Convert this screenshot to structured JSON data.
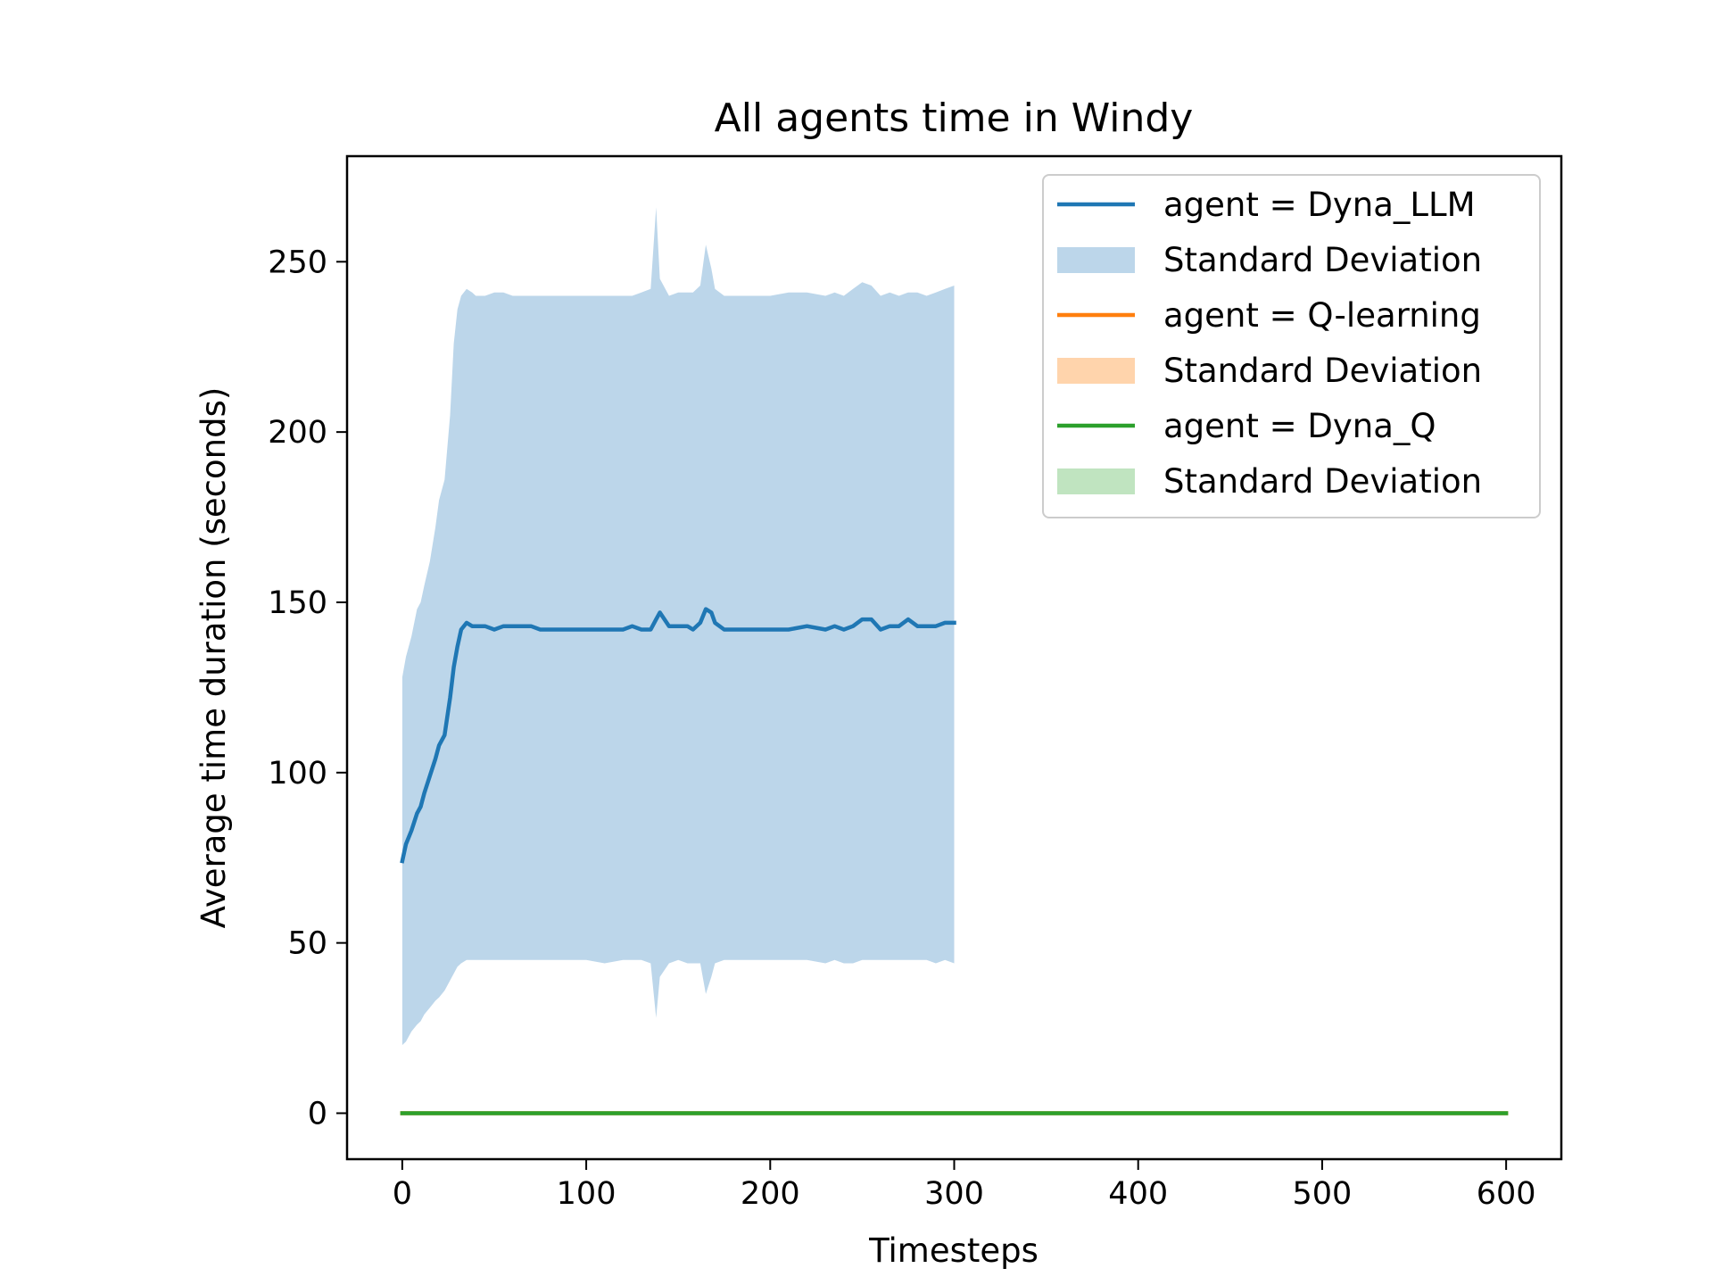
{
  "chart_data": {
    "type": "line",
    "title": "All agents time in Windy",
    "xlabel": "Timesteps",
    "ylabel": "Average time duration (seconds)",
    "xlim": [
      -30,
      630
    ],
    "ylim": [
      -13.5,
      281
    ],
    "xticks": [
      0,
      100,
      200,
      300,
      400,
      500,
      600
    ],
    "yticks": [
      0,
      50,
      100,
      150,
      200,
      250
    ],
    "grid": false,
    "legend_position": "top-right",
    "series": [
      {
        "name": "agent = Dyna_LLM",
        "color": "#1f77b4",
        "band_label": "Standard Deviation",
        "band_color": "#bcd6ea",
        "x": [
          0,
          2,
          5,
          8,
          10,
          12,
          15,
          18,
          20,
          23,
          26,
          28,
          30,
          32,
          35,
          38,
          40,
          45,
          50,
          55,
          60,
          65,
          70,
          75,
          80,
          90,
          100,
          110,
          120,
          125,
          130,
          135,
          138,
          140,
          145,
          150,
          155,
          158,
          162,
          165,
          168,
          170,
          175,
          180,
          190,
          200,
          210,
          220,
          230,
          235,
          240,
          245,
          250,
          255,
          260,
          265,
          270,
          275,
          280,
          285,
          290,
          295,
          300
        ],
        "y": [
          74,
          79,
          83,
          88,
          90,
          94,
          99,
          104,
          108,
          111,
          122,
          131,
          137,
          142,
          144,
          143,
          143,
          143,
          142,
          143,
          143,
          143,
          143,
          142,
          142,
          142,
          142,
          142,
          142,
          143,
          142,
          142,
          145,
          147,
          143,
          143,
          143,
          142,
          144,
          148,
          147,
          144,
          142,
          142,
          142,
          142,
          142,
          143,
          142,
          143,
          142,
          143,
          145,
          145,
          142,
          143,
          143,
          145,
          143,
          143,
          143,
          144,
          144
        ],
        "lower": [
          20,
          21,
          24,
          26,
          27,
          29,
          31,
          33,
          34,
          36,
          39,
          41,
          43,
          44,
          45,
          45,
          45,
          45,
          45,
          45,
          45,
          45,
          45,
          45,
          45,
          45,
          45,
          44,
          45,
          45,
          45,
          44,
          28,
          40,
          44,
          45,
          44,
          44,
          44,
          35,
          40,
          44,
          45,
          45,
          45,
          45,
          45,
          45,
          44,
          45,
          44,
          44,
          45,
          45,
          45,
          45,
          45,
          45,
          45,
          45,
          44,
          45,
          44
        ],
        "upper": [
          128,
          134,
          140,
          148,
          150,
          155,
          162,
          172,
          180,
          186,
          205,
          226,
          236,
          240,
          242,
          241,
          240,
          240,
          241,
          241,
          240,
          240,
          240,
          240,
          240,
          240,
          240,
          240,
          240,
          240,
          241,
          242,
          266,
          245,
          240,
          241,
          241,
          241,
          243,
          255,
          248,
          242,
          240,
          240,
          240,
          240,
          241,
          241,
          240,
          241,
          240,
          242,
          244,
          243,
          240,
          241,
          240,
          241,
          241,
          240,
          241,
          242,
          243
        ]
      },
      {
        "name": "agent = Q-learning",
        "color": "#ff7f0e",
        "band_label": "Standard Deviation",
        "band_color": "#ffd4ac",
        "x": [
          0,
          600
        ],
        "y": [
          0,
          0
        ],
        "lower": [
          0,
          0
        ],
        "upper": [
          0,
          0
        ]
      },
      {
        "name": "agent = Dyna_Q",
        "color": "#2ca02c",
        "band_label": "Standard Deviation",
        "band_color": "#c0e4c0",
        "x": [
          0,
          600
        ],
        "y": [
          0,
          0
        ],
        "lower": [
          0,
          0
        ],
        "upper": [
          0,
          0
        ]
      }
    ]
  }
}
